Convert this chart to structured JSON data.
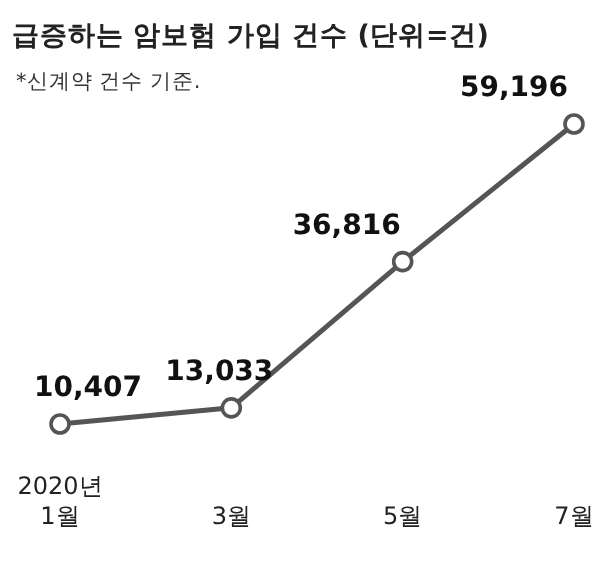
{
  "chart_data": {
    "type": "line",
    "title": "급증하는 암보험 가입 건수 (단위=건)",
    "subtitle": "*신계약 건수 기준.",
    "categories": [
      "2020년\n1월",
      "3월",
      "5월",
      "7월"
    ],
    "series": [
      {
        "color": "#555555",
        "values": [
          10407,
          13033,
          36816,
          59196
        ],
        "value_labels": [
          "10,407",
          "13,033",
          "36,816",
          "59,196"
        ]
      }
    ],
    "marker": "circle",
    "line_style": "solid"
  }
}
